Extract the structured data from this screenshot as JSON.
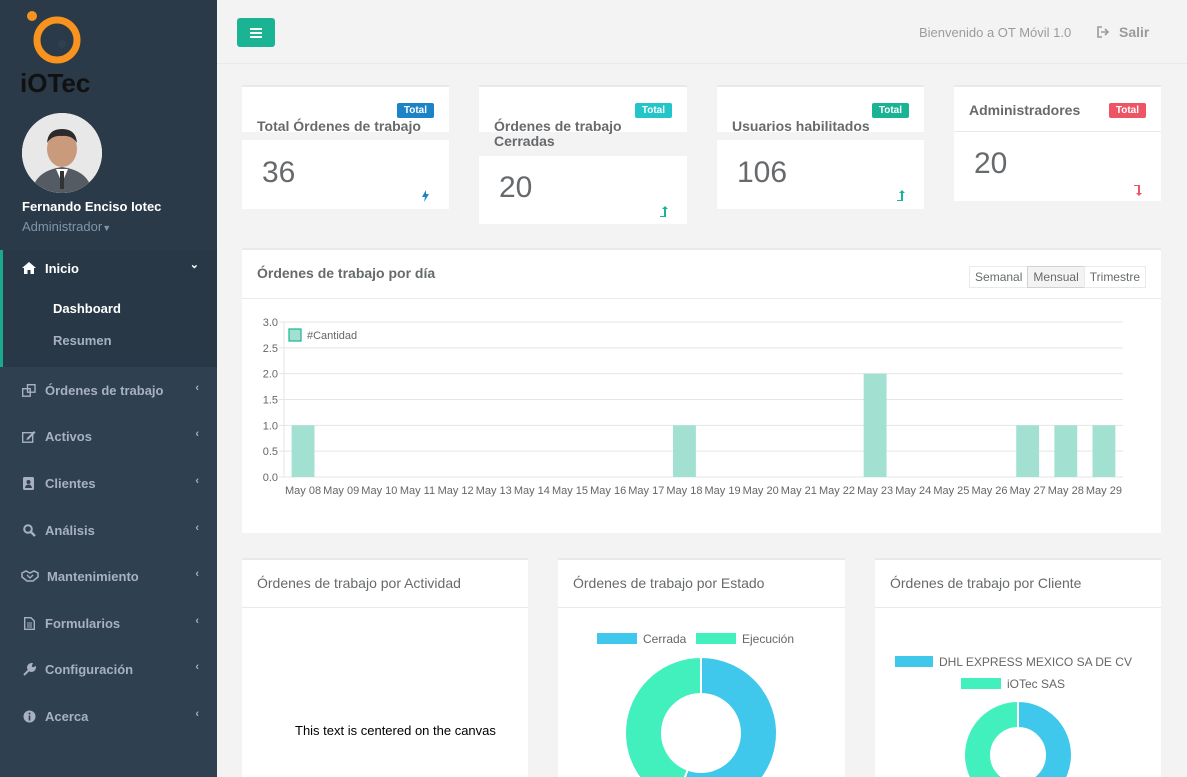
{
  "app": {
    "logo_text": "iOTec"
  },
  "user": {
    "name": "Fernando Enciso Iotec",
    "role": "Administrador"
  },
  "nav": {
    "inicio": "Inicio",
    "dashboard": "Dashboard",
    "resumen": "Resumen",
    "items": [
      {
        "label": "Órdenes de trabajo",
        "icon": "copy-icon"
      },
      {
        "label": "Activos",
        "icon": "edit-icon"
      },
      {
        "label": "Clientes",
        "icon": "address-book-icon"
      },
      {
        "label": "Análisis",
        "icon": "search-icon"
      },
      {
        "label": "Mantenimiento",
        "icon": "handshake-icon"
      },
      {
        "label": "Formularios",
        "icon": "file-icon"
      },
      {
        "label": "Configuración",
        "icon": "wrench-icon"
      },
      {
        "label": "Acerca",
        "icon": "info-icon"
      }
    ]
  },
  "header": {
    "welcome": "Bienvenido a OT Móvil 1.0",
    "logout": "Salir"
  },
  "stats": [
    {
      "title": "Total Órdenes de trabajo",
      "badge": "Total",
      "badge_color": "#1c84c6",
      "value": "36",
      "trend_color": "#1c84c6"
    },
    {
      "title": "Órdenes de trabajo Cerradas",
      "title_line1": "Órdenes de trabajo",
      "title_line2": "Cerradas",
      "badge": "Total",
      "badge_color": "#23c6c8",
      "value": "20",
      "trend_color": "#1ab394"
    },
    {
      "title": "Usuarios habilitados",
      "badge": "Total",
      "badge_color": "#1ab394",
      "value": "106",
      "trend_color": "#1ab394"
    },
    {
      "title": "Administradores",
      "badge": "Total",
      "badge_color": "#ed5565",
      "value": "20",
      "trend_color": "#ed5565"
    }
  ],
  "daily_chart": {
    "title": "Órdenes de trabajo por día",
    "periods": [
      "Semanal",
      "Mensual",
      "Trimestre"
    ],
    "active_period": "Mensual"
  },
  "chart_data": [
    {
      "type": "bar",
      "title": "Órdenes de trabajo por día",
      "legend": "#Cantidad",
      "bar_color": "#a2e1d1",
      "categories": [
        "May 08",
        "May 09",
        "May 10",
        "May 11",
        "May 12",
        "May 13",
        "May 14",
        "May 15",
        "May 16",
        "May 17",
        "May 18",
        "May 19",
        "May 20",
        "May 21",
        "May 22",
        "May 23",
        "May 24",
        "May 25",
        "May 26",
        "May 27",
        "May 28",
        "May 29"
      ],
      "series": [
        {
          "name": "#Cantidad",
          "values": [
            1,
            0,
            0,
            0,
            0,
            0,
            0,
            0,
            0,
            0,
            1,
            0,
            0,
            0,
            0,
            2,
            0,
            0,
            0,
            1,
            1,
            1
          ]
        }
      ],
      "yticks": [
        "0.0",
        "0.5",
        "1.0",
        "1.5",
        "2.0",
        "2.5",
        "3.0"
      ],
      "ylim": [
        0,
        3
      ]
    },
    {
      "type": "pie",
      "title": "Órdenes de trabajo por Estado",
      "labels": [
        "Cerrada",
        "Ejecución"
      ],
      "values": [
        20,
        16
      ],
      "colors": [
        "#3fc8ec",
        "#41f0bc"
      ]
    },
    {
      "type": "pie",
      "title": "Órdenes de trabajo por Cliente",
      "labels": [
        "DHL EXPRESS MEXICO SA DE CV",
        "iOTec SAS"
      ],
      "values": [
        18,
        18
      ],
      "colors": [
        "#3fc8ec",
        "#41f0bc"
      ]
    }
  ],
  "bottom_panels": {
    "actividad": "Órdenes de trabajo por Actividad",
    "estado": "Órdenes de trabajo por Estado",
    "cliente": "Órdenes de trabajo por Cliente",
    "canvas_text": "This text is centered on the canvas"
  }
}
